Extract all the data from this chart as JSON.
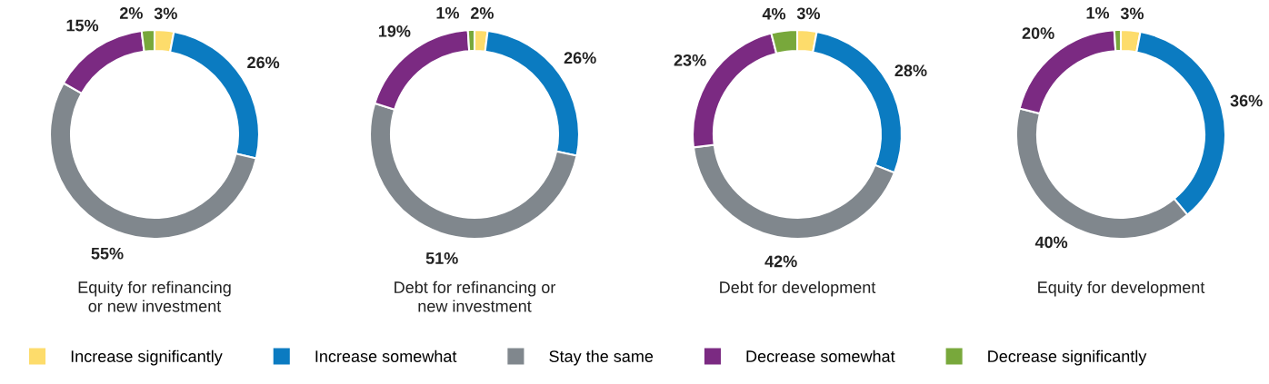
{
  "chart_data": [
    {
      "type": "donut",
      "title": "Equity for refinancing\nor new investment",
      "categories": [
        "Increase significantly",
        "Increase somewhat",
        "Stay the same",
        "Decrease somewhat",
        "Decrease significantly"
      ],
      "values": [
        3,
        26,
        55,
        15,
        2
      ],
      "value_labels": [
        "3%",
        "26%",
        "55%",
        "15%",
        "2%"
      ],
      "colors": [
        "#fddc6b",
        "#0b7bc1",
        "#80878d",
        "#7b2a82",
        "#78a83b"
      ],
      "legend": "bottom"
    },
    {
      "type": "donut",
      "title": "Debt for refinancing or\nnew investment",
      "values": [
        2,
        26,
        51,
        19,
        1
      ],
      "value_labels": [
        "2%",
        "26%",
        "51%",
        "19%",
        "1%"
      ],
      "colors": [
        "#fddc6b",
        "#0b7bc1",
        "#80878d",
        "#7b2a82",
        "#78a83b"
      ]
    },
    {
      "type": "donut",
      "title": "Debt for development",
      "values": [
        3,
        28,
        42,
        23,
        4
      ],
      "value_labels": [
        "3%",
        "28%",
        "42%",
        "23%",
        "4%"
      ],
      "colors": [
        "#fddc6b",
        "#0b7bc1",
        "#80878d",
        "#7b2a82",
        "#78a83b"
      ]
    },
    {
      "type": "donut",
      "title": "Equity for development",
      "values": [
        3,
        36,
        40,
        20,
        1
      ],
      "value_labels": [
        "3%",
        "36%",
        "40%",
        "20%",
        "1%"
      ],
      "colors": [
        "#fddc6b",
        "#0b7bc1",
        "#80878d",
        "#7b2a82",
        "#78a83b"
      ]
    }
  ]
}
